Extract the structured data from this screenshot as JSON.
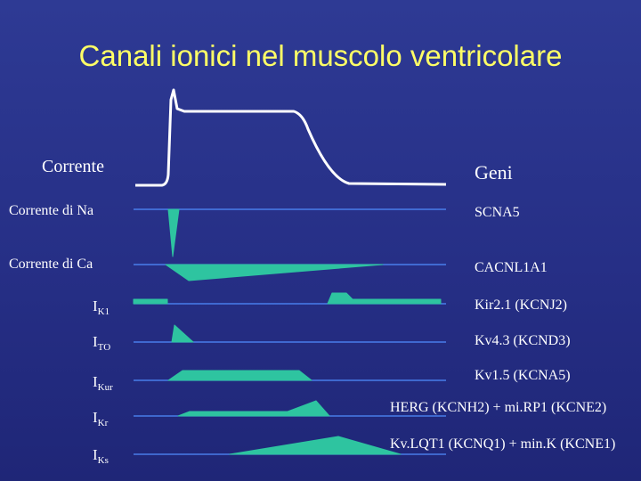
{
  "title": "Canali ionici nel muscolo ventricolare",
  "headers": {
    "left": "Corrente",
    "right": "Geni"
  },
  "colors": {
    "title": "#ffff66",
    "trace": "#ffffff",
    "fill": "#2ec4a0",
    "baseline": "#4f8dff"
  },
  "rows": [
    {
      "current": "Corrente di Na",
      "gene": "SCNA5"
    },
    {
      "current": "Corrente di Ca",
      "gene": "CACNL1A1"
    },
    {
      "current_main": "I",
      "current_sub": "K1",
      "gene": "Kir2.1 (KCNJ2)"
    },
    {
      "current_main": "I",
      "current_sub": "TO",
      "gene": "Kv4.3 (KCND3)"
    },
    {
      "current_main": "I",
      "current_sub": "Kur",
      "gene": "Kv1.5 (KCNA5)"
    },
    {
      "current_main": "I",
      "current_sub": "Kr",
      "gene": "HERG (KCNH2) + mi.RP1 (KCNE2)"
    },
    {
      "current_main": "I",
      "current_sub": "Ks",
      "gene": "Kv.LQT1 (KCNQ1) + min.K (KCNE1)"
    }
  ]
}
